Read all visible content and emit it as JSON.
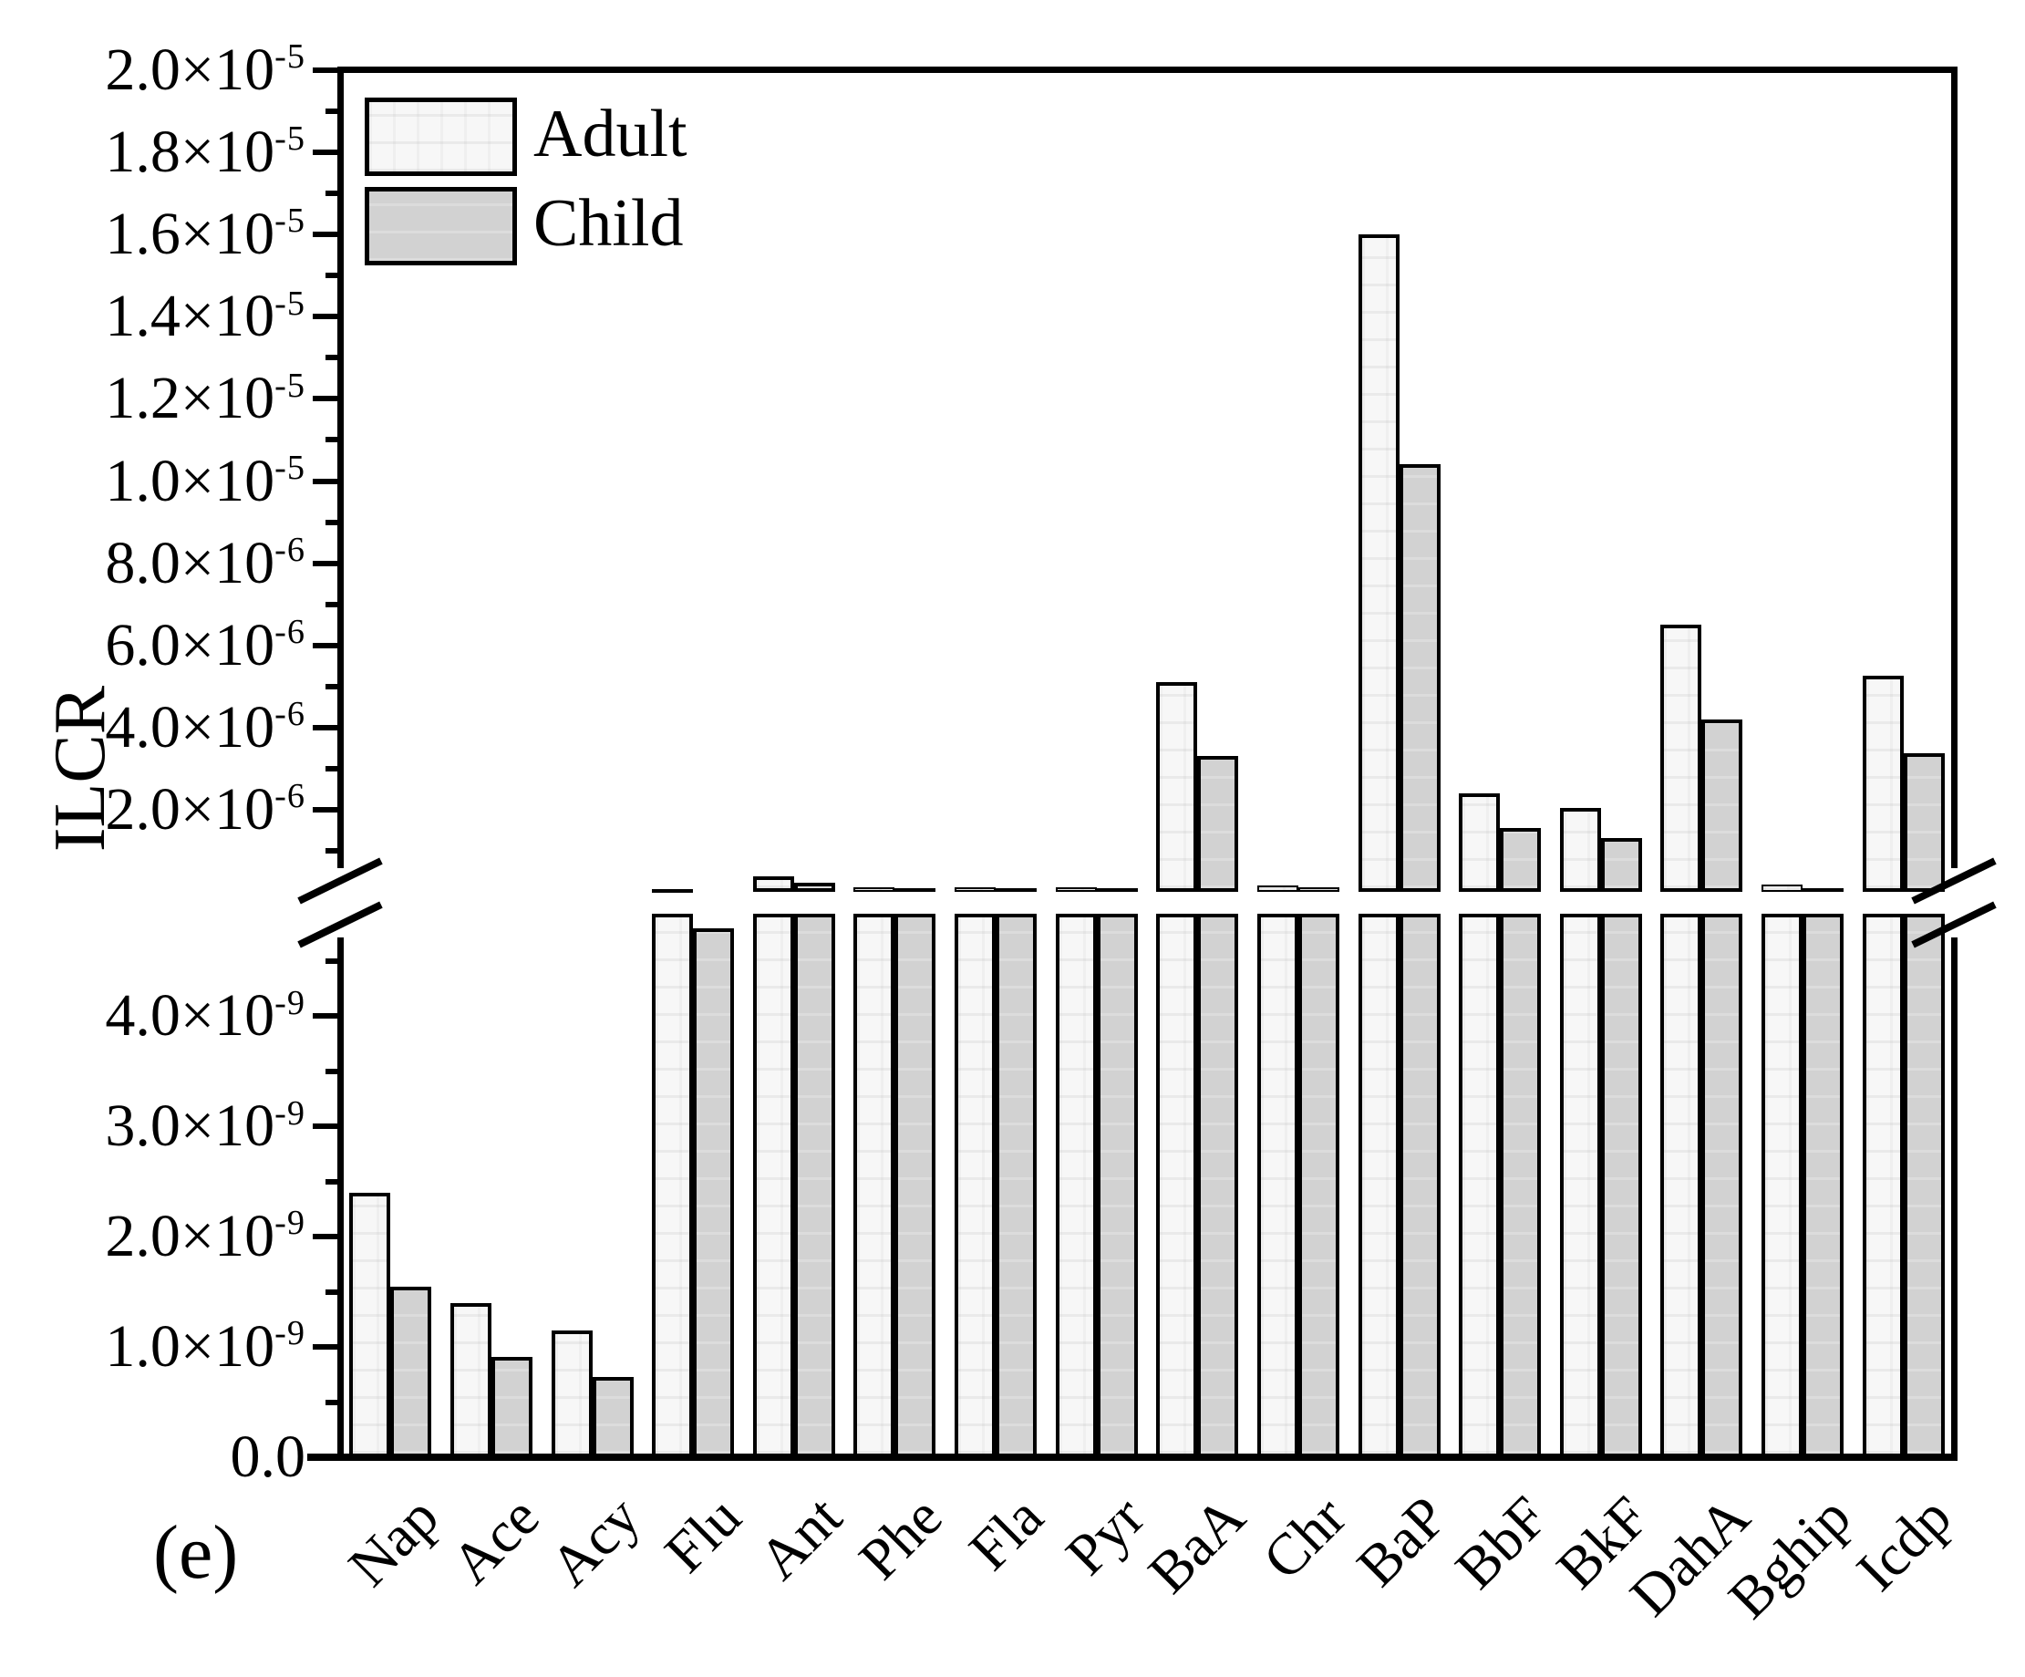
{
  "figure_label": "(e)",
  "legend": {
    "items": [
      {
        "label": "Adult",
        "color": "#f7f7f7"
      },
      {
        "label": "Child",
        "color": "#d2d2d2"
      }
    ]
  },
  "chart_data": {
    "type": "bar",
    "title": "",
    "xlabel": "",
    "ylabel": "ILCR",
    "grid": false,
    "legend_position": "top-left inside plot",
    "axis_color": "#000000",
    "categories": [
      "Nap",
      "Ace",
      "Acy",
      "Flu",
      "Ant",
      "Phe",
      "Fla",
      "Pyr",
      "BaA",
      "Chr",
      "BaP",
      "BbF",
      "BkF",
      "DahA",
      "Bghip",
      "Icdp"
    ],
    "series": [
      {
        "name": "Adult",
        "color": "#f7f7f7",
        "values": [
          2.4e-09,
          1.4e-09,
          1.15e-09,
          6.5e-08,
          3.8e-07,
          1e-07,
          1e-07,
          1.1e-07,
          5.1e-06,
          1.5e-07,
          1.6e-05,
          2.4e-06,
          2.05e-06,
          6.5e-06,
          1.7e-07,
          5.25e-06
        ]
      },
      {
        "name": "Child",
        "color": "#d2d2d2",
        "values": [
          1.55e-09,
          9.1e-10,
          7.3e-10,
          4.8e-09,
          2.2e-07,
          9e-08,
          8e-08,
          9e-08,
          3.3e-06,
          1.1e-07,
          1.04e-05,
          1.55e-06,
          1.32e-06,
          4.2e-06,
          8e-08,
          3.37e-06
        ]
      }
    ],
    "broken_axis": {
      "top_panel": {
        "ylim": [
          0,
          2e-05
        ],
        "major_ticks": [
          {
            "value": 2e-06,
            "label": "2.0×10^-6"
          },
          {
            "value": 4e-06,
            "label": "4.0×10^-6"
          },
          {
            "value": 6e-06,
            "label": "6.0×10^-6"
          },
          {
            "value": 8e-06,
            "label": "8.0×10^-6"
          },
          {
            "value": 1e-05,
            "label": "1.0×10^-5"
          },
          {
            "value": 1.2e-05,
            "label": "1.2×10^-5"
          },
          {
            "value": 1.4e-05,
            "label": "1.4×10^-5"
          },
          {
            "value": 1.6e-05,
            "label": "1.6×10^-5"
          },
          {
            "value": 1.8e-05,
            "label": "1.8×10^-5"
          },
          {
            "value": 2e-05,
            "label": "2.0×10^-5"
          }
        ],
        "minor_ticks": [
          1e-06,
          3e-06,
          5e-06,
          7e-06,
          9e-06,
          1.1e-05,
          1.3e-05,
          1.5e-05,
          1.7e-05,
          1.9e-05
        ]
      },
      "bottom_panel": {
        "ylim": [
          0,
          4.93e-09
        ],
        "major_ticks": [
          {
            "value": 0,
            "label": "0.0"
          },
          {
            "value": 1e-09,
            "label": "1.0×10^-9"
          },
          {
            "value": 2e-09,
            "label": "2.0×10^-9"
          },
          {
            "value": 3e-09,
            "label": "3.0×10^-9"
          },
          {
            "value": 4e-09,
            "label": "4.0×10^-9"
          }
        ],
        "minor_ticks": [
          5e-10,
          1.5e-09,
          2.5e-09,
          3.5e-09,
          4.5e-09
        ]
      }
    }
  }
}
